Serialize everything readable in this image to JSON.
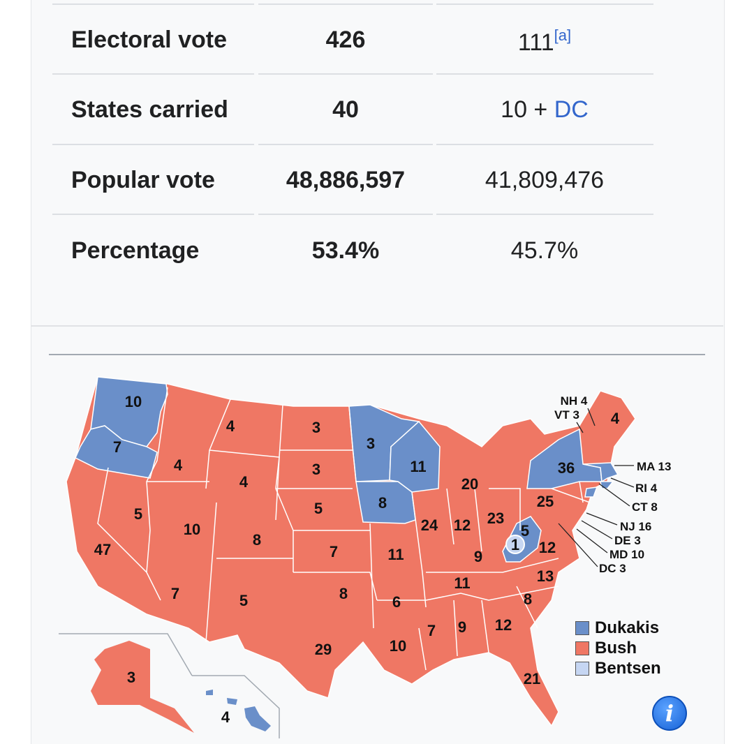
{
  "table": {
    "rows": [
      {
        "label": "Electoral vote",
        "bush": "426",
        "dukakis": "111",
        "dukakis_note": "[a]"
      },
      {
        "label": "States carried",
        "bush": "40",
        "dukakis": "10 + ",
        "dukakis_link": "DC"
      },
      {
        "label": "Popular vote",
        "bush": "48,886,597",
        "dukakis": "41,809,476"
      },
      {
        "label": "Percentage",
        "bush": "53.4%",
        "dukakis": "45.7%"
      }
    ]
  },
  "map": {
    "colors": {
      "dukakis": "#6a8fc9",
      "bush": "#ef7764",
      "bentsen": "#c6d6f2"
    },
    "state_labels": [
      "10",
      "7",
      "4",
      "4",
      "3",
      "4",
      "3",
      "3",
      "5",
      "10",
      "11",
      "8",
      "20",
      "36",
      "25",
      "47",
      "5",
      "8",
      "7",
      "24",
      "12",
      "23",
      "5",
      "1",
      "12",
      "11",
      "9",
      "13",
      "7",
      "5",
      "8",
      "6",
      "11",
      "29",
      "7",
      "9",
      "12",
      "8",
      "10",
      "21",
      "3",
      "4"
    ],
    "small_state_labels": [
      "NH 4",
      "VT 3",
      "MA 13",
      "RI 4",
      "CT 8",
      "NJ 16",
      "DE 3",
      "MD 10",
      "DC 3"
    ],
    "corner_label": "4"
  },
  "legend": {
    "items": [
      {
        "name": "Dukakis",
        "color": "#6a8fc9"
      },
      {
        "name": "Bush",
        "color": "#ef7764"
      },
      {
        "name": "Bentsen",
        "color": "#c6d6f2"
      }
    ]
  },
  "info_icon": "info-icon"
}
